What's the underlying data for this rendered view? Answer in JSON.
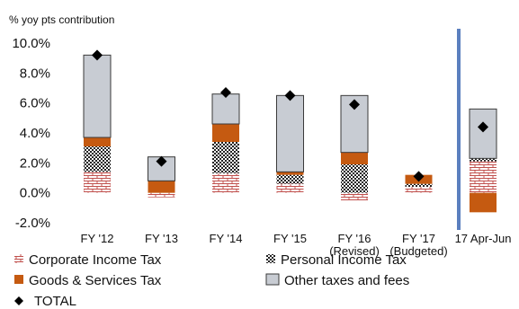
{
  "chart_data": {
    "type": "bar",
    "title": "",
    "ylabel": "% yoy pts contribution",
    "xlabel": "",
    "ylim": [
      -2.0,
      10.0
    ],
    "yticks": [
      "10.0%",
      "8.0%",
      "6.0%",
      "4.0%",
      "2.0%",
      "0.0%",
      "-2.0%"
    ],
    "ytick_values": [
      10,
      8,
      6,
      4,
      2,
      0,
      -2
    ],
    "categories": [
      [
        "FY '12"
      ],
      [
        "FY '13"
      ],
      [
        "FY '14"
      ],
      [
        "FY '15"
      ],
      [
        "FY '16",
        "(Revised)"
      ],
      [
        "FY '17",
        "(Budgeted)"
      ],
      [
        "17 Apr-Jun"
      ]
    ],
    "stacked": true,
    "series": [
      {
        "name": "Corporate Income Tax",
        "pattern": "brick",
        "color": "#c0504d",
        "values": [
          1.4,
          -0.3,
          1.3,
          0.6,
          -0.5,
          0.4,
          2.1
        ]
      },
      {
        "name": "Personal Income Tax",
        "pattern": "checker",
        "color": "#222222",
        "values": [
          1.7,
          0.0,
          2.1,
          0.6,
          1.9,
          0.2,
          0.2
        ]
      },
      {
        "name": "Goods & Services Tax",
        "pattern": "solid",
        "color": "#c55a11",
        "values": [
          0.6,
          0.8,
          1.2,
          0.2,
          0.8,
          0.6,
          -1.3
        ]
      },
      {
        "name": "Other taxes and fees",
        "pattern": "solid",
        "color": "#c8ccd3",
        "values": [
          5.5,
          1.6,
          2.0,
          5.1,
          3.8,
          0.0,
          3.3
        ]
      }
    ],
    "total": {
      "name": "TOTAL",
      "values": [
        9.2,
        2.1,
        6.7,
        6.5,
        5.9,
        1.1,
        4.4
      ]
    },
    "separator_after_category": 5,
    "separator_color": "#5b7fbf",
    "grid": false,
    "legend": "bottom"
  }
}
